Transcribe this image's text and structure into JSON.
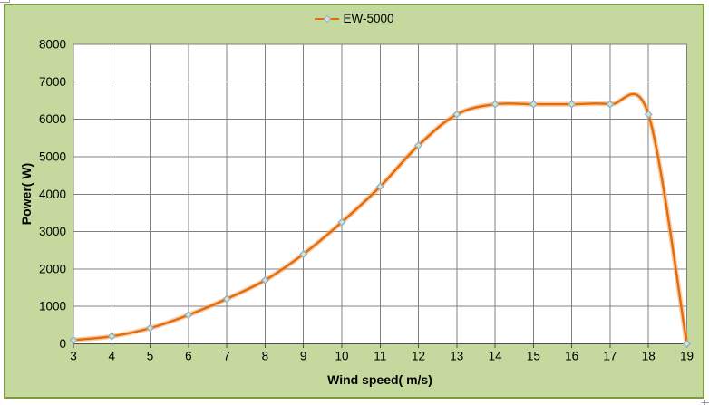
{
  "chart_data": {
    "type": "line",
    "title": "",
    "xlabel": "Wind speed( m/s)",
    "ylabel": "Power( W)",
    "x": [
      3,
      4,
      5,
      6,
      7,
      8,
      9,
      10,
      11,
      12,
      13,
      14,
      15,
      16,
      17,
      18,
      19
    ],
    "series": [
      {
        "name": "EW-5000",
        "values": [
          100,
          200,
          420,
          770,
          1200,
          1700,
          2400,
          3250,
          4200,
          5300,
          6130,
          6400,
          6400,
          6400,
          6400,
          6130,
          0
        ],
        "line_color": "#E26B0A",
        "marker": "diamond",
        "marker_fill": "#D9E5BE",
        "marker_stroke": "#8FAFD0",
        "smooth": true
      }
    ],
    "xlim": [
      3,
      19
    ],
    "ylim": [
      0,
      8000
    ],
    "x_ticks": [
      3,
      4,
      5,
      6,
      7,
      8,
      9,
      10,
      11,
      12,
      13,
      14,
      15,
      16,
      17,
      18,
      19
    ],
    "y_ticks": [
      0,
      1000,
      2000,
      3000,
      4000,
      5000,
      6000,
      7000,
      8000
    ],
    "grid": true,
    "legend_position": "top-center",
    "colors": {
      "chart_bg": "#C5D89D",
      "chart_border": "#7E9C3F",
      "plot_bg": "#FFFFFF",
      "grid": "#808080",
      "axis": "#4D4D4D",
      "text": "#000000",
      "line_glow": "#F2A25C"
    }
  }
}
